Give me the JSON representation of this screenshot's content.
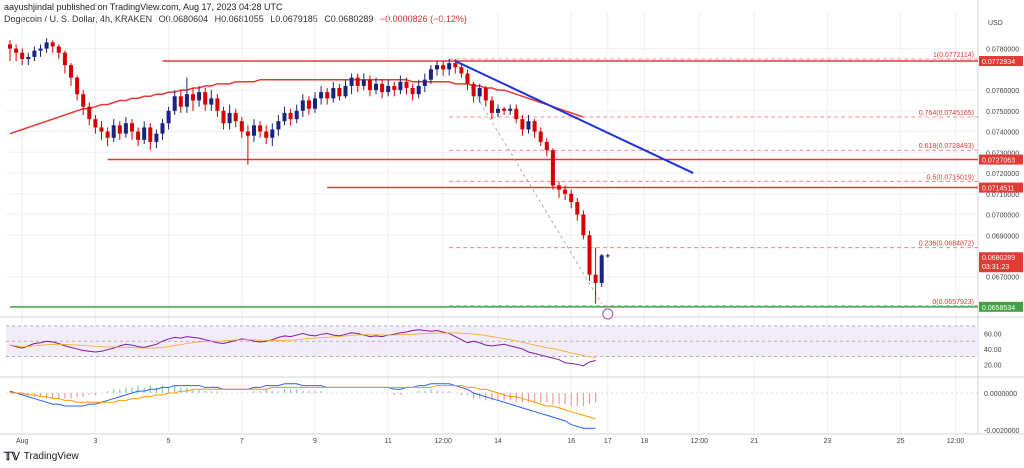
{
  "header": {
    "publisher": "aayushjindal published on TradingView.com, Aug 17, 2023 04:28 UTC"
  },
  "legend": {
    "symbol": "Dogecoin / U. S. Dollar, 4h, KRAKEN",
    "open": "O0.0680604",
    "high": "H0.0681055",
    "low": "L0.0679185",
    "close": "C0.0680289",
    "change": "−0.0000826 (−0.12%)"
  },
  "footer": {
    "brand": "TradingView"
  },
  "chart_data": {
    "type": "candlestick",
    "currency": "USD",
    "xlabel": "",
    "ylabel": "",
    "ylim": [
      0.0653,
      0.0788
    ],
    "x_ticks": [
      {
        "label": "Aug",
        "i": 2
      },
      {
        "label": "3",
        "i": 14
      },
      {
        "label": "5",
        "i": 26
      },
      {
        "label": "7",
        "i": 38
      },
      {
        "label": "9",
        "i": 50
      },
      {
        "label": "11",
        "i": 62
      },
      {
        "label": "12:00",
        "i": 71
      },
      {
        "label": "14",
        "i": 80
      },
      {
        "label": "16",
        "i": 92
      },
      {
        "label": "17",
        "i": 98
      },
      {
        "label": "18",
        "i": 104
      },
      {
        "label": "12:00",
        "i": 113
      },
      {
        "label": "21",
        "i": 122
      },
      {
        "label": "23",
        "i": 134
      },
      {
        "label": "25",
        "i": 146
      },
      {
        "label": "12:00",
        "i": 155
      }
    ],
    "price_axis": [
      "0.0780000",
      "0.0760000",
      "0.0750000",
      "0.0740000",
      "0.0730000",
      "0.0720000",
      "0.0710000",
      "0.0700000",
      "0.0690000",
      "0.0670000"
    ],
    "price_tags": [
      {
        "value": 0.0774,
        "label": "0.0772934",
        "color": "#e53935"
      },
      {
        "value": 0.07265,
        "label": "0.0727063",
        "color": "#e53935"
      },
      {
        "value": 0.0713,
        "label": "0.0714511",
        "color": "#e53935"
      },
      {
        "value": 0.06794,
        "label": "0.0680289",
        "color": "#e53935",
        "sub": "03:31:23"
      },
      {
        "value": 0.06555,
        "label": "0.0658534",
        "color": "#43a047"
      }
    ],
    "fib_levels": [
      {
        "value": 0.0775,
        "label": "1(0.0772114)"
      },
      {
        "value": 0.0747,
        "label": "0.764(0.0745165)"
      },
      {
        "value": 0.0731,
        "label": "0.618(0.0728493)"
      },
      {
        "value": 0.0716,
        "label": "0.5(0.0715019)"
      },
      {
        "value": 0.0684,
        "label": "0.236(0.0684872)"
      },
      {
        "value": 0.0656,
        "label": "0(0.0657923)"
      }
    ],
    "horizontal_lines": [
      {
        "value": 0.0774,
        "color": "#e53935",
        "from_i": 25
      },
      {
        "value": 0.07265,
        "color": "#e53935",
        "from_i": 16
      },
      {
        "value": 0.0713,
        "color": "#e53935",
        "from_i": 52
      },
      {
        "value": 0.06555,
        "color": "#43a047",
        "from_i": 0
      }
    ],
    "trendline": {
      "from": [
        73,
        0.0774
      ],
      "to": [
        112,
        0.072
      ],
      "color": "#1f33d6"
    },
    "fib_diagonal": {
      "from": [
        73,
        0.0774
      ],
      "to": [
        97,
        0.0657
      ]
    },
    "candles": [
      [
        0.0782,
        0.078,
        0.0784,
        0.0774
      ],
      [
        0.078,
        0.0778,
        0.0782,
        0.0774
      ],
      [
        0.0778,
        0.0775,
        0.078,
        0.0772
      ],
      [
        0.0775,
        0.0776,
        0.0778,
        0.0772
      ],
      [
        0.0776,
        0.0779,
        0.0781,
        0.0774
      ],
      [
        0.0779,
        0.078,
        0.0782,
        0.0776
      ],
      [
        0.078,
        0.0783,
        0.0785,
        0.0778
      ],
      [
        0.0783,
        0.0781,
        0.0784,
        0.0778
      ],
      [
        0.0781,
        0.0778,
        0.0782,
        0.0775
      ],
      [
        0.0778,
        0.0772,
        0.0779,
        0.0768
      ],
      [
        0.0772,
        0.0766,
        0.0773,
        0.0762
      ],
      [
        0.0766,
        0.0758,
        0.0767,
        0.0755
      ],
      [
        0.0758,
        0.0752,
        0.076,
        0.0748
      ],
      [
        0.0752,
        0.0746,
        0.0754,
        0.0743
      ],
      [
        0.0746,
        0.0742,
        0.0748,
        0.0739
      ],
      [
        0.0742,
        0.074,
        0.0745,
        0.0736
      ],
      [
        0.074,
        0.0737,
        0.0742,
        0.0733
      ],
      [
        0.0737,
        0.0743,
        0.0746,
        0.0735
      ],
      [
        0.0743,
        0.0739,
        0.0745,
        0.0736
      ],
      [
        0.0739,
        0.0744,
        0.0747,
        0.0737
      ],
      [
        0.0744,
        0.074,
        0.0746,
        0.0736
      ],
      [
        0.074,
        0.0736,
        0.0742,
        0.0733
      ],
      [
        0.0736,
        0.0742,
        0.0745,
        0.0734
      ],
      [
        0.0742,
        0.0735,
        0.0744,
        0.0731
      ],
      [
        0.0735,
        0.0739,
        0.0741,
        0.0732
      ],
      [
        0.0739,
        0.0744,
        0.0746,
        0.0736
      ],
      [
        0.0744,
        0.075,
        0.0752,
        0.0741
      ],
      [
        0.075,
        0.0757,
        0.076,
        0.0748
      ],
      [
        0.0757,
        0.0752,
        0.076,
        0.0749
      ],
      [
        0.0752,
        0.0758,
        0.0766,
        0.0749
      ],
      [
        0.0758,
        0.0755,
        0.0761,
        0.075
      ],
      [
        0.0755,
        0.0759,
        0.0762,
        0.0752
      ],
      [
        0.0759,
        0.0753,
        0.0761,
        0.075
      ],
      [
        0.0753,
        0.0756,
        0.076,
        0.075
      ],
      [
        0.0756,
        0.075,
        0.0758,
        0.0747
      ],
      [
        0.075,
        0.0744,
        0.0752,
        0.0741
      ],
      [
        0.0744,
        0.0749,
        0.0753,
        0.0741
      ],
      [
        0.0749,
        0.0745,
        0.0751,
        0.0742
      ],
      [
        0.0745,
        0.074,
        0.0747,
        0.0737
      ],
      [
        0.074,
        0.0738,
        0.0743,
        0.0724
      ],
      [
        0.0738,
        0.0743,
        0.0746,
        0.0735
      ],
      [
        0.0743,
        0.074,
        0.0745,
        0.0737
      ],
      [
        0.074,
        0.0737,
        0.0743,
        0.0734
      ],
      [
        0.0737,
        0.0741,
        0.0744,
        0.0733
      ],
      [
        0.0741,
        0.0745,
        0.0748,
        0.0738
      ],
      [
        0.0745,
        0.0749,
        0.0752,
        0.0743
      ],
      [
        0.0749,
        0.0746,
        0.0751,
        0.0743
      ],
      [
        0.0746,
        0.075,
        0.0753,
        0.0744
      ],
      [
        0.075,
        0.0755,
        0.0758,
        0.0747
      ],
      [
        0.0755,
        0.0751,
        0.0757,
        0.0748
      ],
      [
        0.0751,
        0.0756,
        0.0759,
        0.0749
      ],
      [
        0.0756,
        0.0759,
        0.0762,
        0.0753
      ],
      [
        0.0759,
        0.0756,
        0.0761,
        0.0753
      ],
      [
        0.0756,
        0.0761,
        0.0764,
        0.0754
      ],
      [
        0.0761,
        0.0757,
        0.0763,
        0.0755
      ],
      [
        0.0757,
        0.0762,
        0.0765,
        0.0756
      ],
      [
        0.0762,
        0.0766,
        0.0768,
        0.0758
      ],
      [
        0.0766,
        0.0762,
        0.0768,
        0.0759
      ],
      [
        0.0762,
        0.0765,
        0.0768,
        0.076
      ],
      [
        0.0765,
        0.076,
        0.0767,
        0.0757
      ],
      [
        0.076,
        0.0763,
        0.0766,
        0.0758
      ],
      [
        0.0763,
        0.0759,
        0.0765,
        0.0756
      ],
      [
        0.0759,
        0.0762,
        0.0765,
        0.0757
      ],
      [
        0.0762,
        0.076,
        0.0764,
        0.0757
      ],
      [
        0.076,
        0.0764,
        0.0767,
        0.0758
      ],
      [
        0.0764,
        0.0761,
        0.0766,
        0.0758
      ],
      [
        0.0761,
        0.0758,
        0.0763,
        0.0755
      ],
      [
        0.0758,
        0.0762,
        0.0765,
        0.0756
      ],
      [
        0.0762,
        0.0765,
        0.0768,
        0.0759
      ],
      [
        0.0765,
        0.077,
        0.0772,
        0.0763
      ],
      [
        0.077,
        0.0772,
        0.0774,
        0.0767
      ],
      [
        0.0772,
        0.077,
        0.0774,
        0.0767
      ],
      [
        0.077,
        0.0773,
        0.0775,
        0.0767
      ],
      [
        0.0773,
        0.0771,
        0.0775,
        0.0768
      ],
      [
        0.0771,
        0.0768,
        0.0773,
        0.0766
      ],
      [
        0.0768,
        0.0763,
        0.077,
        0.076
      ],
      [
        0.0763,
        0.0757,
        0.0764,
        0.0754
      ],
      [
        0.0757,
        0.0761,
        0.0763,
        0.0754
      ],
      [
        0.0761,
        0.0755,
        0.0762,
        0.0752
      ],
      [
        0.0755,
        0.0749,
        0.0757,
        0.0746
      ],
      [
        0.0749,
        0.0751,
        0.0753,
        0.0747
      ],
      [
        0.0751,
        0.075,
        0.0752,
        0.0748
      ],
      [
        0.075,
        0.0751,
        0.0753,
        0.0748
      ],
      [
        0.0751,
        0.0746,
        0.0753,
        0.0744
      ],
      [
        0.0746,
        0.0741,
        0.0748,
        0.0738
      ],
      [
        0.0741,
        0.0745,
        0.0748,
        0.0739
      ],
      [
        0.0745,
        0.074,
        0.0746,
        0.0737
      ],
      [
        0.074,
        0.0735,
        0.0742,
        0.0733
      ],
      [
        0.0735,
        0.0731,
        0.0737,
        0.0728
      ],
      [
        0.0731,
        0.0714,
        0.0732,
        0.0712
      ],
      [
        0.0714,
        0.0712,
        0.0716,
        0.0708
      ],
      [
        0.0712,
        0.071,
        0.0714,
        0.0707
      ],
      [
        0.071,
        0.0706,
        0.0712,
        0.0703
      ],
      [
        0.0706,
        0.07,
        0.0708,
        0.0697
      ],
      [
        0.07,
        0.069,
        0.0702,
        0.0688
      ],
      [
        0.069,
        0.0671,
        0.0692,
        0.0668
      ],
      [
        0.0671,
        0.0667,
        0.0684,
        0.0657
      ],
      [
        0.0667,
        0.06803,
        0.0681,
        0.0665
      ],
      [
        0.06803,
        0.06803,
        0.06811,
        0.06792
      ]
    ],
    "ma_color": "#e53935",
    "ma": [
      0.0739,
      0.074,
      0.0741,
      0.0742,
      0.0743,
      0.0744,
      0.0745,
      0.0746,
      0.0747,
      0.0748,
      0.0749,
      0.075,
      0.0751,
      0.0751,
      0.0752,
      0.0753,
      0.0753,
      0.0754,
      0.0755,
      0.0755,
      0.0756,
      0.0756,
      0.0757,
      0.0757,
      0.0758,
      0.0758,
      0.0759,
      0.0759,
      0.076,
      0.076,
      0.0761,
      0.0761,
      0.0762,
      0.0762,
      0.0763,
      0.0763,
      0.0763,
      0.0764,
      0.0764,
      0.0764,
      0.0764,
      0.0765,
      0.0765,
      0.0765,
      0.0765,
      0.0765,
      0.0765,
      0.0765,
      0.0765,
      0.0765,
      0.0765,
      0.0765,
      0.0765,
      0.0765,
      0.0765,
      0.0765,
      0.0765,
      0.0765,
      0.0765,
      0.0765,
      0.0765,
      0.0765,
      0.0765,
      0.0765,
      0.0765,
      0.0765,
      0.0764,
      0.0764,
      0.0764,
      0.0764,
      0.0764,
      0.0764,
      0.0764,
      0.0763,
      0.0763,
      0.0763,
      0.0762,
      0.0762,
      0.0761,
      0.0761,
      0.076,
      0.076,
      0.0759,
      0.0758,
      0.0757,
      0.0756,
      0.0755,
      0.0754,
      0.0753,
      0.0752,
      0.0751,
      0.075,
      0.0749,
      0.0748,
      0.0747
    ],
    "rsi": {
      "levels": [
        "60.00",
        "40.00",
        "20.00"
      ],
      "range": [
        10,
        75
      ],
      "band": [
        30,
        70
      ],
      "values": [
        45,
        43,
        41,
        44,
        47,
        48,
        50,
        49,
        47,
        44,
        42,
        40,
        38,
        37,
        36,
        37,
        39,
        41,
        44,
        46,
        45,
        43,
        42,
        44,
        46,
        50,
        53,
        55,
        54,
        56,
        55,
        54,
        52,
        50,
        48,
        47,
        49,
        51,
        53,
        52,
        50,
        49,
        50,
        52,
        55,
        57,
        56,
        58,
        60,
        58,
        57,
        59,
        60,
        58,
        57,
        59,
        61,
        60,
        58,
        56,
        57,
        56,
        58,
        59,
        61,
        62,
        64,
        65,
        64,
        63,
        64,
        62,
        60,
        56,
        52,
        48,
        50,
        48,
        45,
        44,
        45,
        46,
        44,
        42,
        40,
        36,
        34,
        32,
        30,
        28,
        26,
        22,
        21,
        20,
        18,
        23,
        25
      ]
    },
    "macd": {
      "levels": [
        "0.0000000",
        "-0.0020000"
      ],
      "range": [
        -0.0021,
        0.0007
      ],
      "values": [
        0.0001,
        0.0,
        -0.0001,
        -0.0002,
        -0.0003,
        -0.0004,
        -0.0005,
        -0.0006,
        -0.0006,
        -0.0007,
        -0.0007,
        -0.0007,
        -0.0007,
        -0.0006,
        -0.0006,
        -0.0005,
        -0.0004,
        -0.0003,
        -0.0002,
        -0.0001,
        0.0,
        0.0001,
        0.0001,
        0.0002,
        0.0002,
        0.0003,
        0.0003,
        0.0004,
        0.0004,
        0.0004,
        0.0004,
        0.0004,
        0.0003,
        0.0003,
        0.0003,
        0.0002,
        0.0002,
        0.0002,
        0.0002,
        0.0002,
        0.0003,
        0.0003,
        0.0004,
        0.0004,
        0.0004,
        0.0005,
        0.0005,
        0.0005,
        0.0004,
        0.0004,
        0.0004,
        0.0004,
        0.0003,
        0.0003,
        0.0003,
        0.0003,
        0.0003,
        0.0003,
        0.0003,
        0.0003,
        0.0003,
        0.0003,
        0.0003,
        0.0002,
        0.0002,
        0.0003,
        0.0003,
        0.0004,
        0.0004,
        0.0005,
        0.0005,
        0.0005,
        0.0005,
        0.0004,
        0.0003,
        0.0002,
        0.0,
        -0.0001,
        -0.0002,
        -0.0003,
        -0.0004,
        -0.0005,
        -0.0006,
        -0.0007,
        -0.0008,
        -0.0009,
        -0.001,
        -0.0011,
        -0.0012,
        -0.0013,
        -0.0014,
        -0.0015,
        -0.0017,
        -0.0018,
        -0.0019,
        -0.0019,
        -0.0019
      ],
      "signal": [
        0.0,
        0.0,
        0.0,
        -0.0001,
        -0.0001,
        -0.0002,
        -0.0002,
        -0.0003,
        -0.0003,
        -0.0004,
        -0.0004,
        -0.0005,
        -0.0005,
        -0.0005,
        -0.0005,
        -0.0005,
        -0.0005,
        -0.0005,
        -0.0004,
        -0.0004,
        -0.0003,
        -0.0003,
        -0.0002,
        -0.0002,
        -0.0001,
        -0.0001,
        0.0,
        0.0,
        0.0001,
        0.0001,
        0.0002,
        0.0002,
        0.0002,
        0.0002,
        0.0002,
        0.0002,
        0.0002,
        0.0002,
        0.0002,
        0.0002,
        0.0002,
        0.0002,
        0.0002,
        0.0003,
        0.0003,
        0.0003,
        0.0003,
        0.0003,
        0.0003,
        0.0003,
        0.0003,
        0.0003,
        0.0003,
        0.0003,
        0.0003,
        0.0003,
        0.0003,
        0.0003,
        0.0003,
        0.0003,
        0.0003,
        0.0003,
        0.0003,
        0.0003,
        0.0003,
        0.0003,
        0.0003,
        0.0003,
        0.0003,
        0.0003,
        0.0004,
        0.0004,
        0.0004,
        0.0004,
        0.0004,
        0.0003,
        0.0003,
        0.0002,
        0.0002,
        0.0001,
        0.0,
        -0.0001,
        -0.0002,
        -0.0002,
        -0.0003,
        -0.0004,
        -0.0005,
        -0.0006,
        -0.0007,
        -0.0007,
        -0.0008,
        -0.0009,
        -0.001,
        -0.0011,
        -0.0012,
        -0.0013,
        -0.0014
      ],
      "macd_color": "#2962ff",
      "signal_color": "#ff9800"
    },
    "colors": {
      "up": "#1a237e",
      "down": "#d50000",
      "grid": "#eef0f4",
      "rsi": "#7b1fa2",
      "rsi_band": "#ede7f6"
    }
  }
}
